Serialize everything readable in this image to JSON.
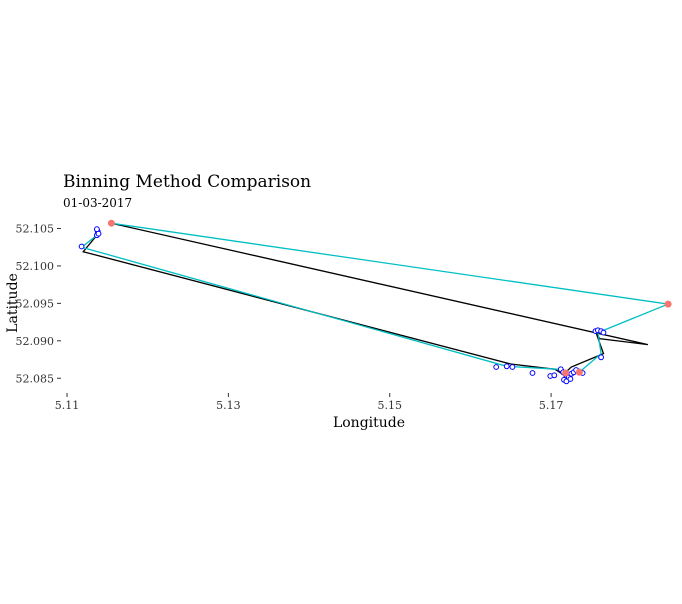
{
  "chart_data": {
    "type": "scatter",
    "title": "Binning Method Comparison",
    "subtitle": "01-03-2017",
    "xlabel": "Longitude",
    "ylabel": "Latitude",
    "xlim": [
      5.1095,
      5.1835
    ],
    "ylim": [
      52.0833,
      52.1068
    ],
    "x_ticks": [
      5.11,
      5.13,
      5.15,
      5.17
    ],
    "x_tick_labels": [
      "5.11",
      "5.13",
      "5.15",
      "5.17"
    ],
    "y_ticks": [
      52.085,
      52.09,
      52.095,
      52.1,
      52.105
    ],
    "y_tick_labels": [
      "52.085",
      "52.090",
      "52.095",
      "52.100",
      "52.105"
    ],
    "grid": false,
    "legend": "none",
    "colors": {
      "blue_points": "#0000ff",
      "red_points": "#f8766d",
      "teal_line": "#00bfc4",
      "black_line": "#000000"
    },
    "series": [
      {
        "kind": "path",
        "color": "#000000",
        "x": [
          5.1155,
          5.182,
          5.176,
          5.1755,
          5.1765,
          5.1725,
          5.1715,
          5.1705,
          5.165,
          5.112,
          5.1137,
          5.1138
        ],
        "y": [
          52.1057,
          52.0895,
          52.0903,
          52.0913,
          52.0883,
          52.0865,
          52.0855,
          52.0862,
          52.0869,
          52.1019,
          52.1041,
          52.1046
        ]
      },
      {
        "kind": "path",
        "color": "#00bfc4",
        "x": [
          5.1155,
          5.1845,
          5.1758,
          5.1762,
          5.1735,
          5.172,
          5.171,
          5.1645,
          5.1118,
          5.1137,
          5.1138
        ],
        "y": [
          52.1057,
          52.0949,
          52.0911,
          52.0883,
          52.0858,
          52.0854,
          52.0862,
          52.0866,
          52.1025,
          52.1041,
          52.1046
        ]
      },
      {
        "kind": "points",
        "color": "#0000ff",
        "filled": false,
        "x": [
          5.1118,
          5.1137,
          5.1138,
          5.1137,
          5.1139,
          5.1632,
          5.1645,
          5.1652,
          5.1677,
          5.1699,
          5.1704,
          5.1712,
          5.1715,
          5.1718,
          5.172,
          5.1722,
          5.1725,
          5.1728,
          5.1731,
          5.1735,
          5.1739,
          5.1716,
          5.1719,
          5.1724,
          5.1755,
          5.1758,
          5.1762,
          5.1765,
          5.1762
        ],
        "y": [
          52.1026,
          52.1041,
          52.1046,
          52.1049,
          52.1043,
          52.0865,
          52.0866,
          52.0865,
          52.0857,
          52.0853,
          52.0854,
          52.0862,
          52.0858,
          52.0855,
          52.0853,
          52.0851,
          52.0856,
          52.0858,
          52.0861,
          52.0859,
          52.0857,
          52.0848,
          52.0846,
          52.0849,
          52.0913,
          52.0914,
          52.0913,
          52.0911,
          52.0878
        ]
      },
      {
        "kind": "points",
        "color": "#f8766d",
        "filled": true,
        "x": [
          5.1155,
          5.1845,
          5.1718,
          5.1735
        ],
        "y": [
          52.1057,
          52.0949,
          52.0857,
          52.0858
        ]
      }
    ]
  }
}
